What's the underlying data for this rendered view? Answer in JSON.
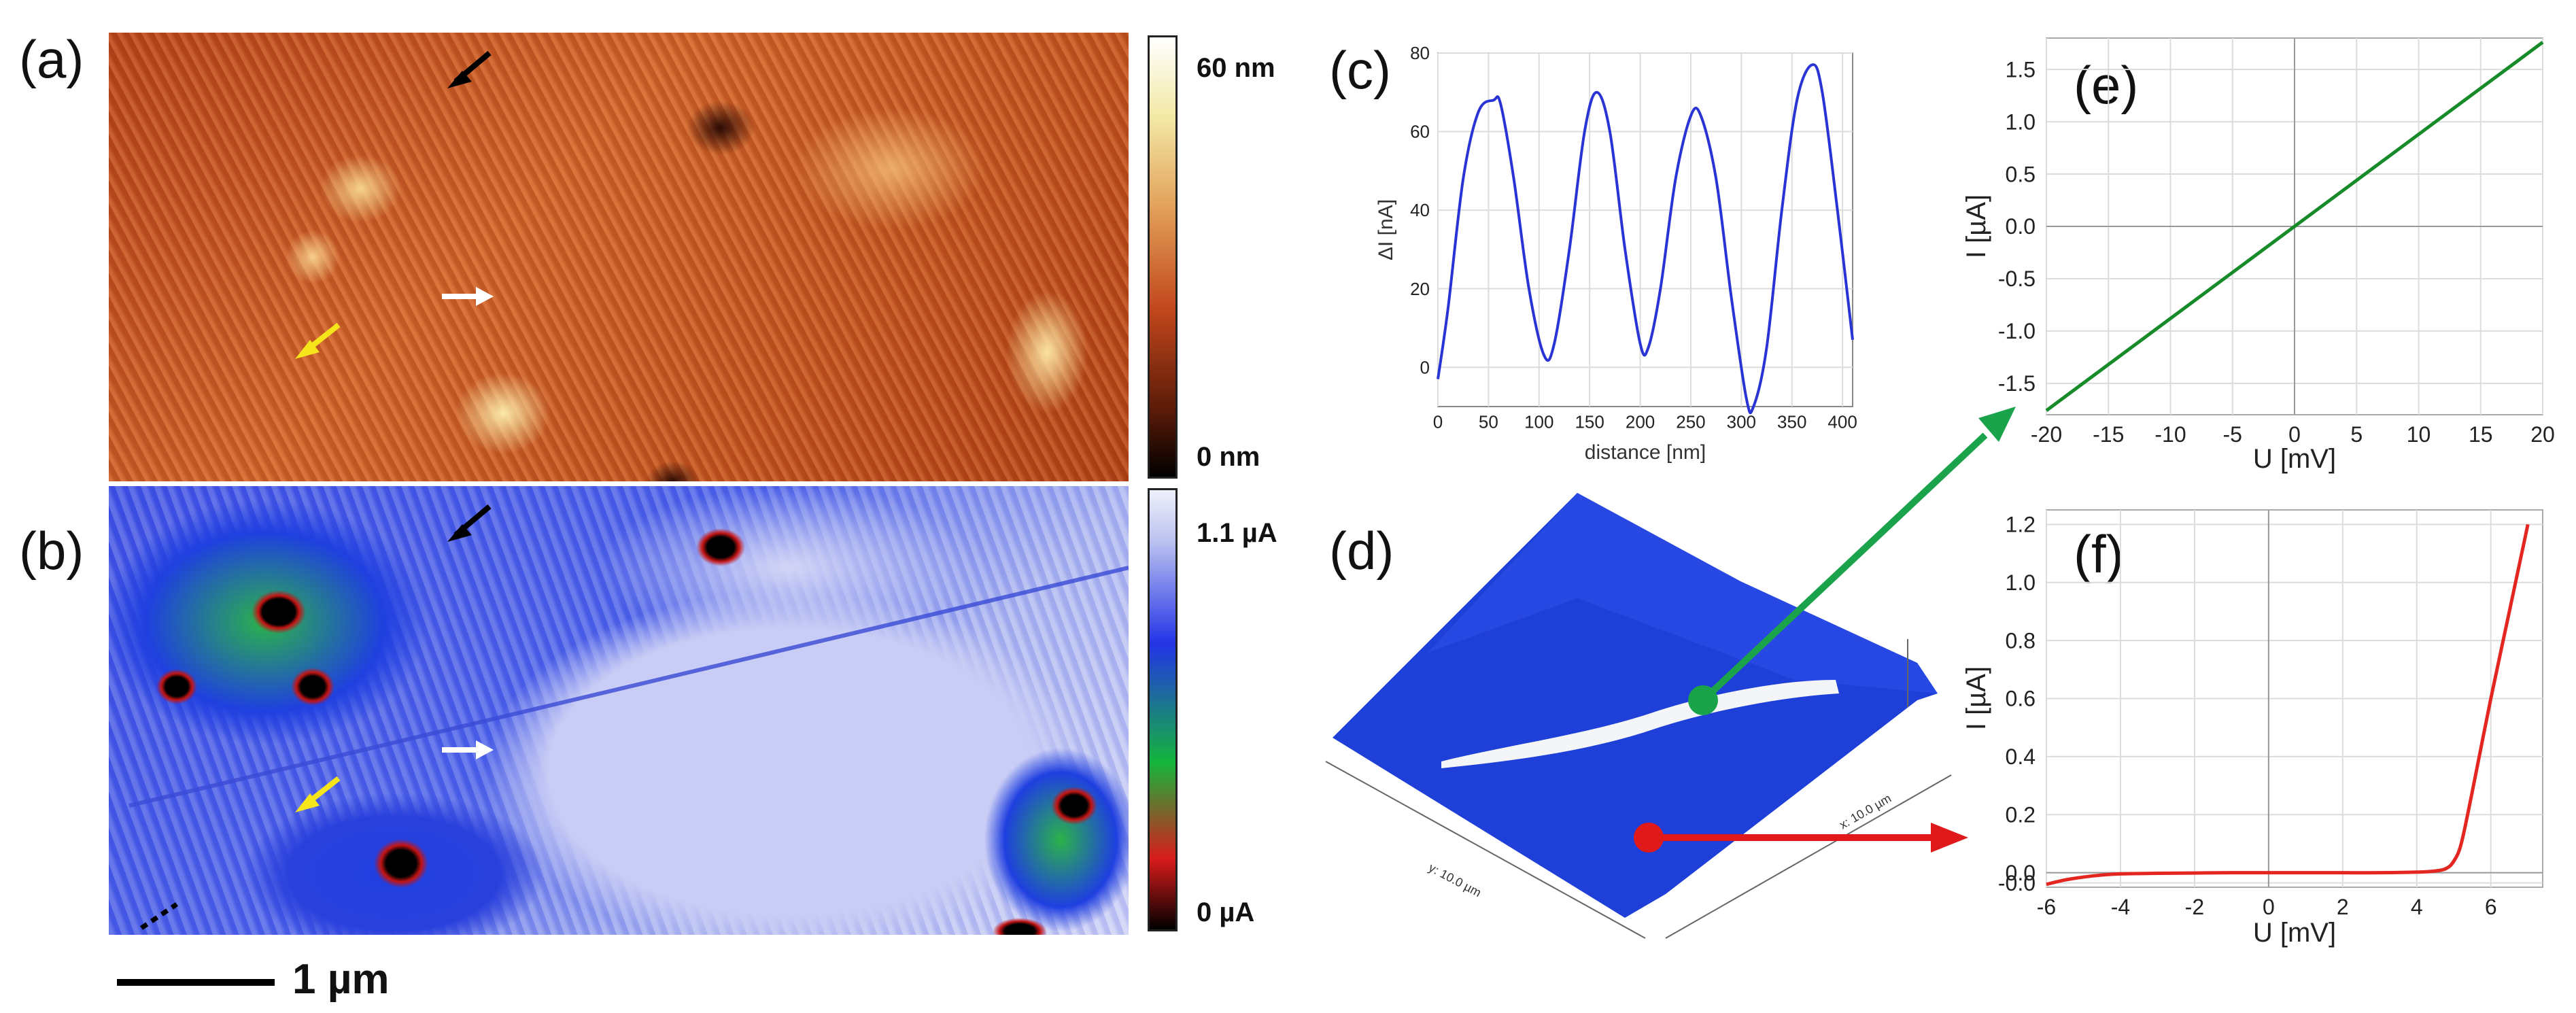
{
  "figure": {
    "panels": {
      "a": "(a)",
      "b": "(b)",
      "c": "(c)",
      "d": "(d)",
      "e": "(e)",
      "f": "(f)"
    },
    "colorbar_a": {
      "max_label": "60 nm",
      "min_label": "0 nm",
      "colors": [
        "#ffffff",
        "#f3e9a6",
        "#e3a35c",
        "#c2471c",
        "#5a1a08",
        "#000000"
      ]
    },
    "colorbar_b": {
      "max_label": "1.1 µA",
      "min_label": "0 µA",
      "colors": [
        "#eef0fb",
        "#b9c0f0",
        "#2333e6",
        "#14b53c",
        "#d81b1b",
        "#000000"
      ]
    },
    "scale_bar": {
      "label": "1 µm"
    },
    "colors": {
      "height_map": "#c9531f",
      "current_map_high": "#c8ccf3",
      "current_map_low": "#1f2ed6",
      "green_arrow": "#1aa34a",
      "red_arrow": "#e0191b",
      "curve_c": "#2a34d4",
      "curve_e": "#178a2a",
      "curve_f": "#e42620"
    },
    "arrows": [
      "black-arrow",
      "white-arrow",
      "yellow-arrow"
    ]
  },
  "chart_data": [
    {
      "id": "c",
      "type": "line",
      "title": "",
      "xlabel": "distance [nm]",
      "ylabel": "ΔI [nA]",
      "xlim": [
        0,
        410
      ],
      "ylim": [
        -10,
        80
      ],
      "xticks": [
        "0",
        "50",
        "100",
        "150",
        "200",
        "250",
        "300",
        "350",
        "400"
      ],
      "yticks": [
        "0",
        "20",
        "40",
        "60",
        "80"
      ],
      "x": [
        0,
        10,
        25,
        40,
        55,
        62,
        75,
        90,
        105,
        115,
        130,
        145,
        157,
        170,
        185,
        200,
        208,
        220,
        235,
        250,
        260,
        275,
        290,
        305,
        312,
        325,
        340,
        355,
        370,
        380,
        395,
        410
      ],
      "y": [
        -3,
        15,
        48,
        65,
        68,
        67,
        48,
        20,
        3,
        6,
        30,
        60,
        70,
        60,
        30,
        6,
        5,
        20,
        48,
        64,
        64,
        48,
        18,
        -8,
        -10,
        5,
        40,
        68,
        77,
        70,
        40,
        7
      ]
    },
    {
      "id": "e",
      "type": "line",
      "title": "",
      "xlabel": "U [mV]",
      "ylabel": "I [µA]",
      "xlim": [
        -20,
        20
      ],
      "ylim": [
        -1.8,
        1.8
      ],
      "xticks": [
        "-20",
        "-15",
        "-10",
        "-5",
        "0",
        "5",
        "10",
        "15",
        "20"
      ],
      "yticks": [
        "-1.5",
        "-1.0",
        "-0.5",
        "0.0",
        "0.5",
        "1.0",
        "1.5"
      ],
      "x": [
        -20,
        20
      ],
      "y": [
        -1.76,
        1.76
      ]
    },
    {
      "id": "f",
      "type": "line",
      "title": "",
      "xlabel": "U [mV]",
      "ylabel": "I [µA]",
      "xlim": [
        -6,
        7.4
      ],
      "ylim": [
        -0.05,
        1.25
      ],
      "xticks": [
        "-6",
        "-4",
        "-2",
        "0",
        "2",
        "4",
        "6"
      ],
      "yticks": [
        "-0.0",
        "0.0",
        "0.2",
        "0.4",
        "0.6",
        "0.8",
        "1.0",
        "1.2"
      ],
      "x": [
        -6,
        -5.5,
        -5,
        -4.5,
        -4,
        -3,
        -2,
        -1,
        0,
        1,
        2,
        3,
        4,
        4.5,
        4.8,
        5.0,
        5.2,
        5.5,
        6.0,
        6.5,
        7.0
      ],
      "y": [
        -0.04,
        -0.025,
        -0.015,
        -0.008,
        -0.004,
        -0.002,
        -0.001,
        0,
        0,
        0,
        0,
        0,
        0.002,
        0.006,
        0.015,
        0.04,
        0.1,
        0.28,
        0.6,
        0.9,
        1.2
      ]
    }
  ]
}
